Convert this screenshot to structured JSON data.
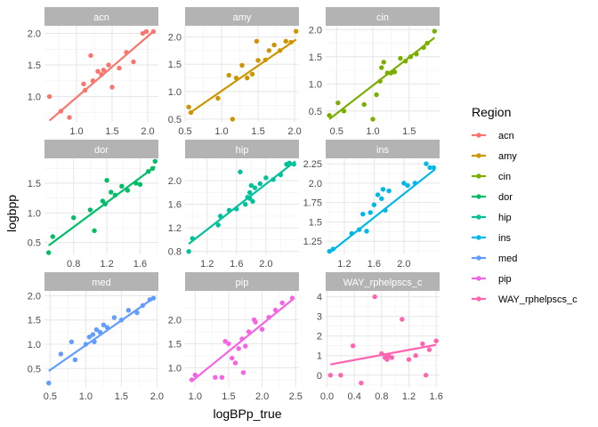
{
  "chart_data": {
    "type": "scatter",
    "facets": true,
    "xlabel": "logBPp_true",
    "ylabel": "logbpp",
    "legend": {
      "title": "Region",
      "position": "right"
    },
    "grid": true,
    "panels": [
      {
        "name": "acn",
        "color": "#F8766D",
        "xlim": [
          0.55,
          2.15
        ],
        "ylim": [
          0.6,
          2.12
        ],
        "xticks": [
          {
            "v": 1.0,
            "label": "1.0"
          },
          {
            "v": 1.5,
            "label": "1.5"
          },
          {
            "v": 2.0,
            "label": "2.0"
          }
        ],
        "yticks": [
          {
            "v": 1.0,
            "label": "1.0"
          },
          {
            "v": 1.5,
            "label": "1.5"
          },
          {
            "v": 2.0,
            "label": "2.0"
          }
        ],
        "points": [
          [
            0.62,
            1.0
          ],
          [
            0.78,
            0.77
          ],
          [
            0.9,
            0.67
          ],
          [
            1.1,
            1.2
          ],
          [
            1.12,
            1.1
          ],
          [
            1.2,
            1.65
          ],
          [
            1.23,
            1.25
          ],
          [
            1.3,
            1.4
          ],
          [
            1.35,
            1.35
          ],
          [
            1.38,
            1.42
          ],
          [
            1.45,
            1.5
          ],
          [
            1.5,
            1.15
          ],
          [
            1.6,
            1.45
          ],
          [
            1.7,
            1.7
          ],
          [
            1.8,
            1.55
          ],
          [
            1.93,
            2.0
          ],
          [
            1.98,
            2.03
          ],
          [
            2.08,
            2.03
          ]
        ],
        "fit": [
          [
            0.62,
            0.62
          ],
          [
            2.08,
            2.03
          ]
        ]
      },
      {
        "name": "amy",
        "color": "#CD9600",
        "xlim": [
          0.5,
          2.06
        ],
        "ylim": [
          0.45,
          2.2
        ],
        "xticks": [
          {
            "v": 0.5,
            "label": "0.5"
          },
          {
            "v": 1.0,
            "label": "1.0"
          },
          {
            "v": 1.5,
            "label": "1.5"
          },
          {
            "v": 2.0,
            "label": "2.0"
          }
        ],
        "yticks": [
          {
            "v": 0.5,
            "label": "0.5"
          },
          {
            "v": 1.0,
            "label": "1.0"
          },
          {
            "v": 1.5,
            "label": "1.5"
          },
          {
            "v": 2.0,
            "label": "2.0"
          }
        ],
        "points": [
          [
            0.55,
            0.72
          ],
          [
            0.58,
            0.62
          ],
          [
            0.95,
            0.88
          ],
          [
            1.1,
            1.3
          ],
          [
            1.15,
            0.5
          ],
          [
            1.2,
            1.25
          ],
          [
            1.28,
            1.48
          ],
          [
            1.35,
            1.25
          ],
          [
            1.42,
            1.32
          ],
          [
            1.48,
            1.92
          ],
          [
            1.5,
            1.57
          ],
          [
            1.6,
            1.58
          ],
          [
            1.65,
            1.75
          ],
          [
            1.72,
            1.85
          ],
          [
            1.8,
            1.75
          ],
          [
            1.88,
            1.92
          ],
          [
            1.95,
            1.9
          ],
          [
            2.02,
            2.1
          ]
        ],
        "fit": [
          [
            0.55,
            0.6
          ],
          [
            2.02,
            1.95
          ]
        ]
      },
      {
        "name": "cin",
        "color": "#7CAE00",
        "xlim": [
          0.35,
          1.92
        ],
        "ylim": [
          0.3,
          2.07
        ],
        "xticks": [
          {
            "v": 0.5,
            "label": "0.5"
          },
          {
            "v": 1.0,
            "label": "1.0"
          },
          {
            "v": 1.5,
            "label": "1.5"
          }
        ],
        "yticks": [
          {
            "v": 0.5,
            "label": "0.5"
          },
          {
            "v": 1.0,
            "label": "1.0"
          },
          {
            "v": 1.5,
            "label": "1.5"
          },
          {
            "v": 2.0,
            "label": "2.0"
          }
        ],
        "points": [
          [
            0.4,
            0.42
          ],
          [
            0.52,
            0.65
          ],
          [
            0.6,
            0.5
          ],
          [
            0.88,
            0.62
          ],
          [
            1.0,
            0.35
          ],
          [
            1.05,
            0.8
          ],
          [
            1.1,
            1.05
          ],
          [
            1.12,
            1.3
          ],
          [
            1.15,
            1.4
          ],
          [
            1.2,
            1.2
          ],
          [
            1.25,
            1.2
          ],
          [
            1.3,
            1.22
          ],
          [
            1.38,
            1.47
          ],
          [
            1.45,
            1.42
          ],
          [
            1.52,
            1.5
          ],
          [
            1.6,
            1.55
          ],
          [
            1.7,
            1.67
          ],
          [
            1.75,
            1.75
          ],
          [
            1.85,
            1.97
          ]
        ],
        "fit": [
          [
            0.4,
            0.35
          ],
          [
            1.85,
            1.85
          ]
        ]
      },
      {
        "name": "dor",
        "color": "#00BE67",
        "xlim": [
          0.45,
          1.82
        ],
        "ylim": [
          0.3,
          1.92
        ],
        "xticks": [
          {
            "v": 0.8,
            "label": "0.8"
          },
          {
            "v": 1.2,
            "label": "1.2"
          },
          {
            "v": 1.6,
            "label": "1.6"
          }
        ],
        "yticks": [
          {
            "v": 0.5,
            "label": "0.5"
          },
          {
            "v": 1.0,
            "label": "1.0"
          },
          {
            "v": 1.5,
            "label": "1.5"
          }
        ],
        "points": [
          [
            0.5,
            0.33
          ],
          [
            0.55,
            0.6
          ],
          [
            0.8,
            0.92
          ],
          [
            1.0,
            1.05
          ],
          [
            1.05,
            0.7
          ],
          [
            1.15,
            1.2
          ],
          [
            1.18,
            1.15
          ],
          [
            1.2,
            1.55
          ],
          [
            1.25,
            1.35
          ],
          [
            1.3,
            1.3
          ],
          [
            1.38,
            1.45
          ],
          [
            1.45,
            1.38
          ],
          [
            1.55,
            1.5
          ],
          [
            1.6,
            1.48
          ],
          [
            1.7,
            1.7
          ],
          [
            1.75,
            1.75
          ],
          [
            1.78,
            1.87
          ]
        ],
        "fit": [
          [
            0.5,
            0.45
          ],
          [
            1.78,
            1.78
          ]
        ]
      },
      {
        "name": "hip",
        "color": "#00C19A",
        "xlim": [
          0.9,
          2.45
        ],
        "ylim": [
          0.75,
          2.38
        ],
        "xticks": [
          {
            "v": 1.2,
            "label": "1.2"
          },
          {
            "v": 1.6,
            "label": "1.6"
          },
          {
            "v": 2.0,
            "label": "2.0"
          }
        ],
        "yticks": [
          {
            "v": 0.8,
            "label": "0.8"
          },
          {
            "v": 1.2,
            "label": "1.2"
          },
          {
            "v": 1.6,
            "label": "1.6"
          },
          {
            "v": 2.0,
            "label": "2.0"
          }
        ],
        "points": [
          [
            0.95,
            0.8
          ],
          [
            1.0,
            1.02
          ],
          [
            1.35,
            1.25
          ],
          [
            1.38,
            1.4
          ],
          [
            1.5,
            1.5
          ],
          [
            1.6,
            1.52
          ],
          [
            1.65,
            2.15
          ],
          [
            1.72,
            1.6
          ],
          [
            1.75,
            1.72
          ],
          [
            1.78,
            1.8
          ],
          [
            1.78,
            1.7
          ],
          [
            1.8,
            1.92
          ],
          [
            1.82,
            1.65
          ],
          [
            1.85,
            1.88
          ],
          [
            1.92,
            1.95
          ],
          [
            2.0,
            2.05
          ],
          [
            2.1,
            2.02
          ],
          [
            2.2,
            2.1
          ],
          [
            2.28,
            2.28
          ],
          [
            2.32,
            2.3
          ],
          [
            2.38,
            2.28
          ]
        ],
        "fit": [
          [
            0.95,
            0.93
          ],
          [
            2.4,
            2.33
          ]
        ]
      },
      {
        "name": "ins",
        "color": "#00B8E7",
        "xlim": [
          0.95,
          2.48
        ],
        "ylim": [
          1.08,
          2.32
        ],
        "xticks": [
          {
            "v": 1.2,
            "label": "1.2"
          },
          {
            "v": 1.6,
            "label": "1.6"
          },
          {
            "v": 2.0,
            "label": "2.0"
          }
        ],
        "yticks": [
          {
            "v": 1.25,
            "label": "1.25"
          },
          {
            "v": 1.5,
            "label": "1.5"
          },
          {
            "v": 1.75,
            "label": "1.75"
          },
          {
            "v": 2.0,
            "label": "2.0"
          },
          {
            "v": 2.25,
            "label": "2.25"
          }
        ],
        "points": [
          [
            1.0,
            1.12
          ],
          [
            1.05,
            1.15
          ],
          [
            1.3,
            1.35
          ],
          [
            1.4,
            1.4
          ],
          [
            1.45,
            1.6
          ],
          [
            1.5,
            1.38
          ],
          [
            1.55,
            1.62
          ],
          [
            1.6,
            1.72
          ],
          [
            1.65,
            1.85
          ],
          [
            1.7,
            1.8
          ],
          [
            1.72,
            1.92
          ],
          [
            1.75,
            1.65
          ],
          [
            1.8,
            1.9
          ],
          [
            2.0,
            2.0
          ],
          [
            2.05,
            1.97
          ],
          [
            2.15,
            2.0
          ],
          [
            2.3,
            2.25
          ],
          [
            2.35,
            2.2
          ],
          [
            2.4,
            2.2
          ]
        ],
        "fit": [
          [
            1.0,
            1.1
          ],
          [
            2.42,
            2.18
          ]
        ]
      },
      {
        "name": "med",
        "color": "#619CFF",
        "xlim": [
          0.42,
          2.02
        ],
        "ylim": [
          0.12,
          2.1
        ],
        "xticks": [
          {
            "v": 0.5,
            "label": "0.5"
          },
          {
            "v": 1.0,
            "label": "1.0"
          },
          {
            "v": 1.5,
            "label": "1.5"
          },
          {
            "v": 2.0,
            "label": "2.0"
          }
        ],
        "yticks": [
          {
            "v": 0.5,
            "label": "0.5"
          },
          {
            "v": 1.0,
            "label": "1.0"
          },
          {
            "v": 1.5,
            "label": "1.5"
          },
          {
            "v": 2.0,
            "label": "2.0"
          }
        ],
        "points": [
          [
            0.48,
            0.2
          ],
          [
            0.65,
            0.8
          ],
          [
            0.8,
            1.05
          ],
          [
            0.85,
            0.68
          ],
          [
            1.0,
            1.0
          ],
          [
            1.05,
            1.15
          ],
          [
            1.1,
            1.2
          ],
          [
            1.12,
            1.05
          ],
          [
            1.15,
            1.3
          ],
          [
            1.2,
            1.25
          ],
          [
            1.25,
            1.4
          ],
          [
            1.3,
            1.35
          ],
          [
            1.4,
            1.55
          ],
          [
            1.5,
            1.5
          ],
          [
            1.6,
            1.7
          ],
          [
            1.72,
            1.65
          ],
          [
            1.8,
            1.8
          ],
          [
            1.9,
            1.92
          ],
          [
            1.95,
            1.95
          ]
        ],
        "fit": [
          [
            0.48,
            0.45
          ],
          [
            1.95,
            1.95
          ]
        ]
      },
      {
        "name": "pip",
        "color": "#F564E3",
        "xlim": [
          0.85,
          2.55
        ],
        "ylim": [
          0.6,
          2.6
        ],
        "xticks": [
          {
            "v": 1.0,
            "label": "1.0"
          },
          {
            "v": 1.5,
            "label": "1.5"
          },
          {
            "v": 2.0,
            "label": "2.0"
          },
          {
            "v": 2.5,
            "label": "2.5"
          }
        ],
        "yticks": [
          {
            "v": 1.0,
            "label": "1.0"
          },
          {
            "v": 1.5,
            "label": "1.5"
          },
          {
            "v": 2.0,
            "label": "2.0"
          }
        ],
        "points": [
          [
            0.95,
            0.75
          ],
          [
            1.0,
            0.85
          ],
          [
            1.3,
            0.8
          ],
          [
            1.4,
            0.8
          ],
          [
            1.45,
            1.55
          ],
          [
            1.5,
            1.5
          ],
          [
            1.55,
            1.2
          ],
          [
            1.6,
            1.1
          ],
          [
            1.65,
            1.4
          ],
          [
            1.7,
            1.6
          ],
          [
            1.72,
            0.9
          ],
          [
            1.75,
            1.45
          ],
          [
            1.8,
            1.75
          ],
          [
            1.88,
            2.0
          ],
          [
            1.9,
            1.95
          ],
          [
            2.0,
            1.8
          ],
          [
            2.1,
            2.05
          ],
          [
            2.2,
            2.2
          ],
          [
            2.3,
            2.35
          ],
          [
            2.45,
            2.45
          ]
        ],
        "fit": [
          [
            0.95,
            0.72
          ],
          [
            2.48,
            2.45
          ]
        ]
      },
      {
        "name": "WAY_rphelpscs_c",
        "color": "#FF64B0",
        "xlim": [
          -0.02,
          1.65
        ],
        "ylim": [
          -0.6,
          4.3
        ],
        "xticks": [
          {
            "v": 0.0,
            "label": "0.0"
          },
          {
            "v": 0.4,
            "label": "0.4"
          },
          {
            "v": 0.8,
            "label": "0.8"
          },
          {
            "v": 1.2,
            "label": "1.2"
          },
          {
            "v": 1.6,
            "label": "1.6"
          }
        ],
        "yticks": [
          {
            "v": 0,
            "label": "0"
          },
          {
            "v": 1,
            "label": "1"
          },
          {
            "v": 2,
            "label": "2"
          },
          {
            "v": 3,
            "label": "3"
          },
          {
            "v": 4,
            "label": "4"
          }
        ],
        "points": [
          [
            0.05,
            0.0
          ],
          [
            0.2,
            0.0
          ],
          [
            0.38,
            1.5
          ],
          [
            0.5,
            -0.4
          ],
          [
            0.7,
            4.0
          ],
          [
            0.8,
            1.1
          ],
          [
            0.85,
            0.9
          ],
          [
            0.88,
            0.8
          ],
          [
            0.9,
            1.0
          ],
          [
            0.95,
            0.9
          ],
          [
            1.1,
            2.85
          ],
          [
            1.2,
            0.8
          ],
          [
            1.3,
            1.0
          ],
          [
            1.4,
            1.6
          ],
          [
            1.45,
            0.0
          ],
          [
            1.5,
            1.3
          ],
          [
            1.6,
            1.75
          ]
        ],
        "fit": [
          [
            0.05,
            0.55
          ],
          [
            1.6,
            1.55
          ]
        ]
      }
    ]
  }
}
